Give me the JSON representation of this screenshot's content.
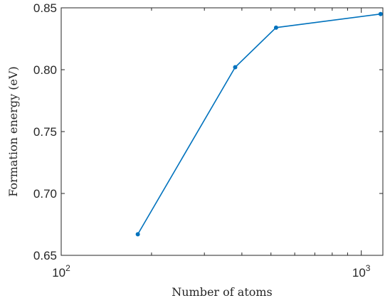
{
  "chart_data": {
    "type": "line",
    "xscale": "log",
    "xlim": [
      100,
      1180
    ],
    "ylim": [
      0.65,
      0.85
    ],
    "xticks": [
      {
        "base": "10",
        "exp": "2",
        "value": 100
      },
      {
        "base": "10",
        "exp": "3",
        "value": 1000
      }
    ],
    "yticks": [
      {
        "label": "0.65",
        "value": 0.65
      },
      {
        "label": "0.70",
        "value": 0.7
      },
      {
        "label": "0.75",
        "value": 0.75
      },
      {
        "label": "0.80",
        "value": 0.8
      },
      {
        "label": "0.85",
        "value": 0.85
      }
    ],
    "xlabel": "Number of atoms",
    "ylabel": "Formation energy (eV)",
    "grid": false,
    "series": [
      {
        "color": "#0072BD",
        "marker": "circle",
        "x": [
          180,
          380,
          520,
          1160
        ],
        "y": [
          0.667,
          0.802,
          0.834,
          0.845
        ]
      }
    ]
  }
}
